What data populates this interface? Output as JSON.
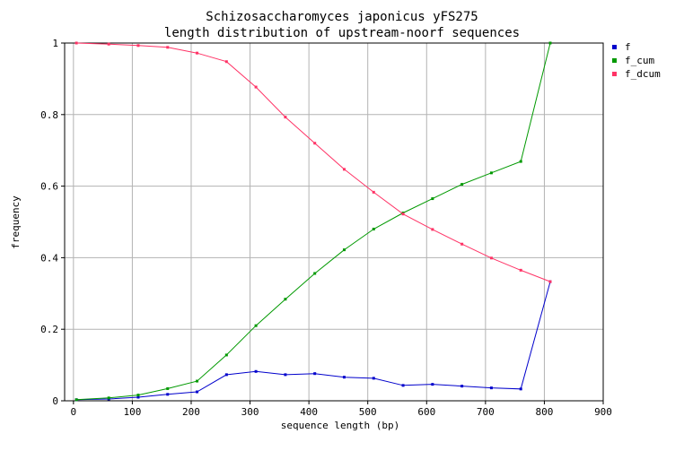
{
  "chart_data": {
    "type": "line",
    "title": "Schizosaccharomyces japonicus yFS275",
    "subtitle": "length distribution of upstream-noorf sequences",
    "xlabel": "sequence length (bp)",
    "ylabel": "frequency",
    "xlim": [
      -15,
      900
    ],
    "ylim": [
      0,
      1
    ],
    "xticks": [
      "0",
      "100",
      "200",
      "300",
      "400",
      "500",
      "600",
      "700",
      "800",
      "900"
    ],
    "yticks": [
      "0",
      "0.2",
      "0.4",
      "0.6",
      "0.8",
      "1"
    ],
    "grid": true,
    "legend_position": "right",
    "x": [
      5,
      60,
      110,
      160,
      210,
      260,
      310,
      360,
      410,
      460,
      510,
      560,
      610,
      660,
      710,
      760,
      810
    ],
    "series": [
      {
        "name": "f",
        "color": "#0000cc",
        "values": [
          0.003,
          0.005,
          0.01,
          0.018,
          0.025,
          0.073,
          0.082,
          0.073,
          0.076,
          0.066,
          0.063,
          0.043,
          0.046,
          0.041,
          0.036,
          0.033,
          0.333
        ]
      },
      {
        "name": "f_cum",
        "color": "#009900",
        "values": [
          0.003,
          0.008,
          0.016,
          0.034,
          0.055,
          0.128,
          0.21,
          0.284,
          0.356,
          0.422,
          0.48,
          0.525,
          0.565,
          0.605,
          0.637,
          0.669,
          1.0
        ]
      },
      {
        "name": "f_dcum",
        "color": "#ff3366",
        "values": [
          1.0,
          0.997,
          0.993,
          0.988,
          0.972,
          0.948,
          0.877,
          0.793,
          0.72,
          0.647,
          0.583,
          0.522,
          0.479,
          0.438,
          0.399,
          0.365,
          0.333
        ]
      }
    ]
  }
}
